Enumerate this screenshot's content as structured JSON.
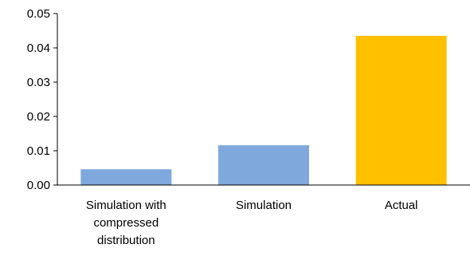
{
  "chart_data": {
    "type": "bar",
    "title": "",
    "xlabel": "",
    "ylabel": "",
    "ylim": [
      0,
      0.05
    ],
    "yticks": [
      "0.00",
      "0.01",
      "0.02",
      "0.03",
      "0.04",
      "0.05"
    ],
    "grid": false,
    "legend": "none",
    "categories": [
      [
        "Simulation with",
        "compressed",
        "distribution"
      ],
      [
        "Simulation"
      ],
      [
        "Actual"
      ]
    ],
    "values": [
      0.0046,
      0.0116,
      0.0435
    ],
    "bar_colors": [
      "#7FA8DC",
      "#7FA8DC",
      "#FFC000"
    ]
  }
}
